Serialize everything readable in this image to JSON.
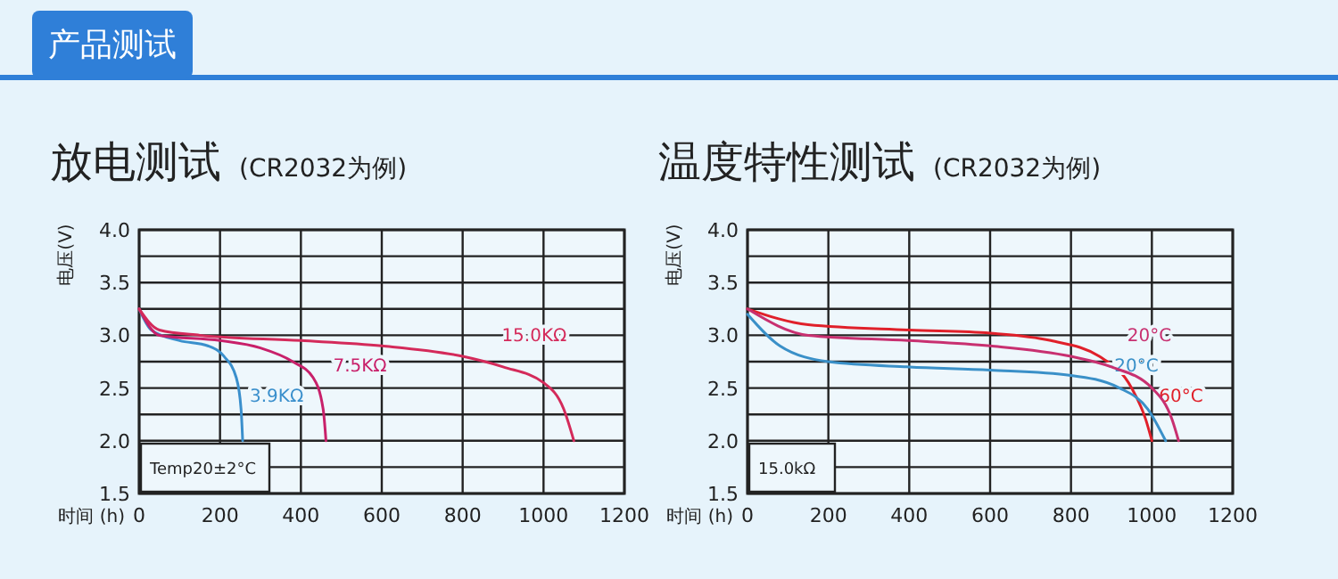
{
  "chart_data": [
    {
      "type": "other",
      "title": "产品测试"
    },
    {
      "type": "line",
      "title": "放电测试",
      "subtitle": "(CR2032为例)",
      "xlabel": "时间 (h)",
      "ylabel": "电压(V)",
      "xlim": [
        0,
        1200
      ],
      "ylim": [
        1.5,
        4.0
      ],
      "xticks": [
        0,
        200,
        400,
        600,
        800,
        1000,
        1200
      ],
      "yticks": [
        {
          "value": 1.5,
          "label": "1.5"
        },
        {
          "value": 1.75,
          "label": null
        },
        {
          "value": 2,
          "label": "2.0"
        },
        {
          "value": 2.25,
          "label": null
        },
        {
          "value": 2.5,
          "label": "2.5"
        },
        {
          "value": 2.75,
          "label": null
        },
        {
          "value": 3,
          "label": "3.0"
        },
        {
          "value": 3.25,
          "label": null
        },
        {
          "value": 3.5,
          "label": "3.5"
        },
        {
          "value": 3.75,
          "label": null
        },
        {
          "value": 4,
          "label": "4.0"
        }
      ],
      "grid": true,
      "legend": false,
      "annotations": [
        "Temp20±2°C"
      ],
      "series": [
        {
          "name": "3.9KΩ",
          "color": "#3a8fcc",
          "x": [
            0,
            30,
            100,
            170,
            210,
            240,
            252,
            256
          ],
          "values": [
            3.25,
            3.05,
            2.95,
            2.9,
            2.8,
            2.6,
            2.3,
            2.0
          ]
        },
        {
          "name": "7.5KΩ",
          "color": "#c8206a",
          "x": [
            0,
            50,
            200,
            300,
            380,
            430,
            455,
            462
          ],
          "values": [
            3.25,
            3.0,
            2.95,
            2.88,
            2.75,
            2.6,
            2.3,
            2.0
          ]
        },
        {
          "name": "15.0KΩ",
          "color": "#d42a5a",
          "x": [
            0,
            50,
            150,
            400,
            600,
            800,
            900,
            1000,
            1050,
            1075
          ],
          "values": [
            3.25,
            3.05,
            3.0,
            2.95,
            2.9,
            2.8,
            2.7,
            2.55,
            2.3,
            2.0
          ]
        }
      ]
    },
    {
      "type": "line",
      "title": "温度特性测试",
      "subtitle": "(CR2032为例)",
      "xlabel": "时间 (h)",
      "ylabel": "电压(V)",
      "xlim": [
        0,
        1200
      ],
      "ylim": [
        1.5,
        4.0
      ],
      "xticks": [
        0,
        200,
        400,
        600,
        800,
        1000,
        1200
      ],
      "yticks": [
        {
          "value": 1.5,
          "label": "1.5"
        },
        {
          "value": 1.75,
          "label": null
        },
        {
          "value": 2,
          "label": "2.0"
        },
        {
          "value": 2.25,
          "label": null
        },
        {
          "value": 2.5,
          "label": "2.5"
        },
        {
          "value": 2.75,
          "label": null
        },
        {
          "value": 3,
          "label": "3.0"
        },
        {
          "value": 3.25,
          "label": null
        },
        {
          "value": 3.5,
          "label": "3.5"
        },
        {
          "value": 3.75,
          "label": null
        },
        {
          "value": 4,
          "label": "4.0"
        }
      ],
      "grid": true,
      "legend": false,
      "annotations": [
        "15.0kΩ"
      ],
      "series": [
        {
          "name": "60°C",
          "color": "#e0202a",
          "x": [
            0,
            150,
            400,
            600,
            750,
            870,
            950,
            985,
            1000
          ],
          "values": [
            3.25,
            3.1,
            3.05,
            3.02,
            2.95,
            2.8,
            2.5,
            2.2,
            2.0
          ]
        },
        {
          "name": "-20°C",
          "color": "#3a90c8",
          "x": [
            0,
            80,
            200,
            400,
            600,
            800,
            920,
            990,
            1034
          ],
          "values": [
            3.2,
            2.9,
            2.75,
            2.7,
            2.67,
            2.62,
            2.5,
            2.3,
            2.0
          ]
        },
        {
          "name": "20°C",
          "color": "#c83070",
          "x": [
            0,
            150,
            400,
            600,
            800,
            900,
            1000,
            1050,
            1066
          ],
          "values": [
            3.25,
            3.0,
            2.95,
            2.9,
            2.8,
            2.7,
            2.5,
            2.2,
            2.0
          ]
        }
      ]
    }
  ]
}
